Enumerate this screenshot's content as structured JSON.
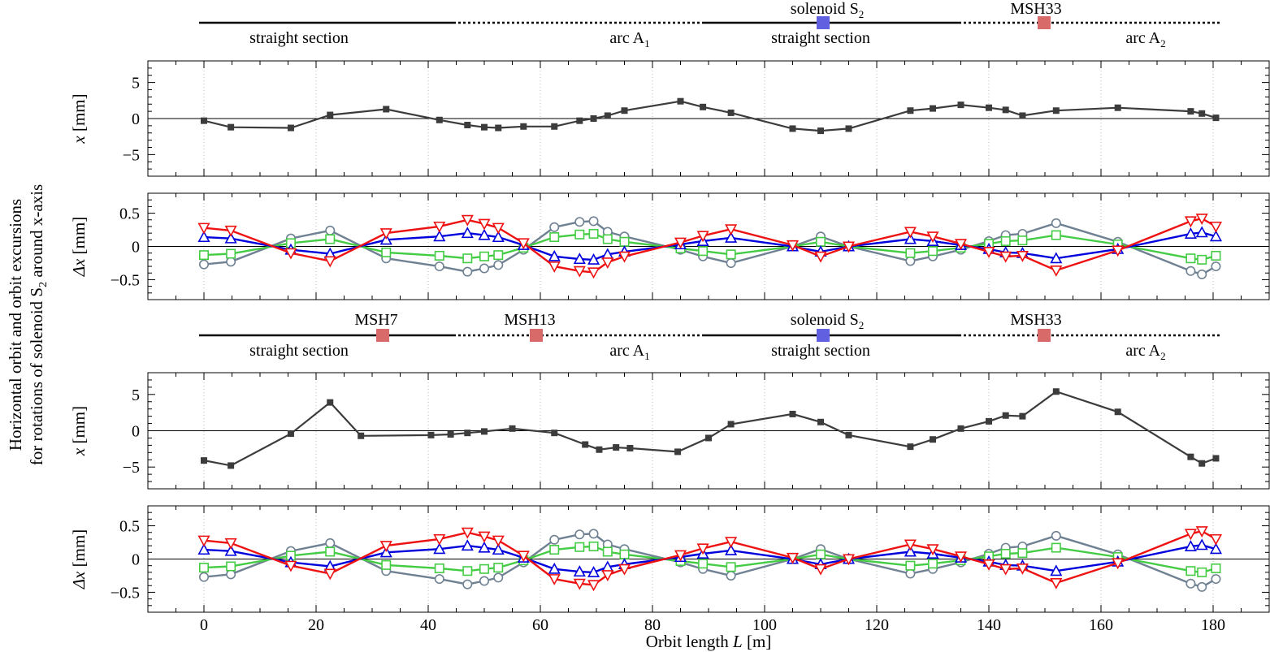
{
  "figure": {
    "ylabel_line1": "Horizontal orbit and orbit excursions",
    "ylabel_line2_prefix": "for rotations of solenoid S",
    "ylabel_line2_sub": "2",
    "ylabel_line2_suffix": " around x-axis",
    "xlabel_prefix": "Orbit length ",
    "xlabel_var": "L",
    "xlabel_suffix": " [m]"
  },
  "beamlines": [
    {
      "labels": [
        {
          "text": "solenoid S",
          "sub": "2",
          "color": "#6060e0"
        },
        {
          "text": "MSH33",
          "sub": "",
          "color": "#d96a6a"
        }
      ],
      "sections": [
        {
          "name": "straight section",
          "sub": "",
          "style": "solid"
        },
        {
          "name": "arc A",
          "sub": "1",
          "style": "dotted"
        },
        {
          "name": "straight section",
          "sub": "",
          "style": "solid"
        },
        {
          "name": "arc A",
          "sub": "2",
          "style": "dotted"
        }
      ]
    },
    {
      "labels": [
        {
          "text": "MSH7",
          "sub": "",
          "color": "#d96a6a"
        },
        {
          "text": "MSH13",
          "sub": "",
          "color": "#d96a6a"
        },
        {
          "text": "solenoid S",
          "sub": "2",
          "color": "#6060e0"
        },
        {
          "text": "MSH33",
          "sub": "",
          "color": "#d96a6a"
        }
      ],
      "sections": [
        {
          "name": "straight section",
          "sub": "",
          "style": "solid"
        },
        {
          "name": "arc A",
          "sub": "1",
          "style": "dotted"
        },
        {
          "name": "straight section",
          "sub": "",
          "style": "solid"
        },
        {
          "name": "arc A",
          "sub": "2",
          "style": "dotted"
        }
      ]
    }
  ],
  "chart_data": [
    {
      "type": "line",
      "panel": "orbit-top",
      "ylabel_var": "x",
      "ylabel_unit": " [mm]",
      "xlim": [
        -10,
        190
      ],
      "ylim": [
        -8,
        8
      ],
      "xticks": [
        0,
        20,
        40,
        60,
        80,
        100,
        120,
        140,
        160,
        180
      ],
      "yticks": [
        -5,
        0,
        5
      ],
      "ytick_labels": [
        "−5",
        "0",
        "5"
      ],
      "series": [
        {
          "name": "orbit",
          "color": "#3c3c3c",
          "marker": "filled-square",
          "x": [
            0,
            4.8,
            15.5,
            22.5,
            32.5,
            42,
            47,
            50,
            52.5,
            57,
            62.5,
            67,
            69.5,
            72,
            75,
            85,
            89,
            94,
            105,
            110,
            115,
            126,
            130,
            135,
            140,
            143,
            146,
            152,
            163,
            176,
            178,
            180.5
          ],
          "y": [
            -0.3,
            -1.2,
            -1.3,
            0.5,
            1.3,
            -0.2,
            -0.9,
            -1.2,
            -1.3,
            -1.1,
            -1.1,
            -0.3,
            0.0,
            0.4,
            1.1,
            2.4,
            1.6,
            0.8,
            -1.4,
            -1.7,
            -1.4,
            1.1,
            1.4,
            1.9,
            1.5,
            1.2,
            0.4,
            1.1,
            1.5,
            1.0,
            0.7,
            0.1
          ]
        }
      ]
    },
    {
      "type": "line",
      "panel": "excursion-top",
      "ylabel_var": "Δx",
      "ylabel_unit": " [mm]",
      "xlim": [
        -10,
        190
      ],
      "ylim": [
        -0.8,
        0.8
      ],
      "xticks": [
        0,
        20,
        40,
        60,
        80,
        100,
        120,
        140,
        160,
        180
      ],
      "yticks": [
        -0.5,
        0,
        0.5
      ],
      "ytick_labels": [
        "−0.5",
        "0",
        "0.5"
      ],
      "x": [
        0,
        4.8,
        15.5,
        22.5,
        32.5,
        42,
        47,
        50,
        52.5,
        57,
        62.5,
        67,
        69.5,
        72,
        75,
        85,
        89,
        94,
        105,
        110,
        115,
        126,
        130,
        135,
        140,
        143,
        146,
        152,
        163,
        176,
        178,
        180.5
      ],
      "series": [
        {
          "name": "slate-circles",
          "color": "#6f8192",
          "marker": "circle",
          "y": [
            -0.27,
            -0.23,
            0.12,
            0.24,
            -0.18,
            -0.3,
            -0.38,
            -0.33,
            -0.28,
            -0.05,
            0.29,
            0.37,
            0.38,
            0.22,
            0.15,
            -0.05,
            -0.15,
            -0.25,
            0.0,
            0.15,
            0.0,
            -0.22,
            -0.15,
            -0.05,
            0.08,
            0.17,
            0.19,
            0.35,
            0.07,
            -0.37,
            -0.42,
            -0.3
          ]
        },
        {
          "name": "green-squares",
          "color": "#44cc44",
          "marker": "square",
          "y": [
            -0.13,
            -0.11,
            0.05,
            0.11,
            -0.09,
            -0.14,
            -0.18,
            -0.15,
            -0.13,
            -0.02,
            0.14,
            0.18,
            0.19,
            0.11,
            0.07,
            -0.03,
            -0.07,
            -0.12,
            0.0,
            0.07,
            0.0,
            -0.1,
            -0.07,
            -0.02,
            0.04,
            0.08,
            0.09,
            0.17,
            0.03,
            -0.18,
            -0.2,
            -0.14
          ]
        },
        {
          "name": "blue-triangles",
          "color": "#0000dd",
          "marker": "triangle-up",
          "y": [
            0.14,
            0.12,
            -0.05,
            -0.11,
            0.1,
            0.15,
            0.2,
            0.17,
            0.14,
            0.02,
            -0.15,
            -0.19,
            -0.2,
            -0.12,
            -0.08,
            0.03,
            0.08,
            0.13,
            0.0,
            -0.08,
            0.0,
            0.11,
            0.08,
            0.02,
            -0.04,
            -0.09,
            -0.1,
            -0.18,
            -0.04,
            0.19,
            0.21,
            0.15
          ]
        },
        {
          "name": "red-triangles",
          "color": "#ee1111",
          "marker": "triangle-down",
          "y": [
            0.28,
            0.24,
            -0.1,
            -0.22,
            0.2,
            0.3,
            0.4,
            0.34,
            0.28,
            0.05,
            -0.3,
            -0.37,
            -0.39,
            -0.24,
            -0.15,
            0.06,
            0.16,
            0.26,
            0.02,
            -0.15,
            0.0,
            0.22,
            0.15,
            0.04,
            -0.08,
            -0.15,
            -0.14,
            -0.36,
            -0.06,
            0.38,
            0.42,
            0.3
          ]
        }
      ]
    },
    {
      "type": "line",
      "panel": "orbit-bottom",
      "ylabel_var": "x",
      "ylabel_unit": " [mm]",
      "xlim": [
        -10,
        190
      ],
      "ylim": [
        -8,
        8
      ],
      "xticks": [
        0,
        20,
        40,
        60,
        80,
        100,
        120,
        140,
        160,
        180
      ],
      "yticks": [
        -5,
        0,
        5
      ],
      "ytick_labels": [
        "−5",
        "0",
        "5"
      ],
      "series": [
        {
          "name": "orbit",
          "color": "#3c3c3c",
          "marker": "filled-square",
          "x": [
            0,
            4.8,
            15.5,
            22.5,
            28,
            40.5,
            44,
            47,
            50,
            55,
            62.5,
            68,
            70.5,
            73.5,
            76,
            84.5,
            90,
            94,
            105,
            110,
            115,
            126,
            130,
            135,
            140,
            143,
            146,
            152,
            163,
            176,
            178,
            180.5
          ],
          "y": [
            -4.1,
            -4.8,
            -0.4,
            3.9,
            -0.7,
            -0.6,
            -0.5,
            -0.3,
            -0.1,
            0.3,
            -0.3,
            -1.9,
            -2.6,
            -2.3,
            -2.4,
            -2.9,
            -1.0,
            0.9,
            2.3,
            1.2,
            -0.6,
            -2.2,
            -1.2,
            0.3,
            1.3,
            2.1,
            2.0,
            5.4,
            2.6,
            -3.6,
            -4.5,
            -3.8
          ]
        }
      ]
    },
    {
      "type": "line",
      "panel": "excursion-bottom",
      "ylabel_var": "Δx",
      "ylabel_unit": " [mm]",
      "xlim": [
        -10,
        190
      ],
      "ylim": [
        -0.8,
        0.8
      ],
      "xticks": [
        0,
        20,
        40,
        60,
        80,
        100,
        120,
        140,
        160,
        180
      ],
      "xtick_labels": [
        "0",
        "20",
        "40",
        "60",
        "80",
        "100",
        "120",
        "140",
        "160",
        "180"
      ],
      "yticks": [
        -0.5,
        0,
        0.5
      ],
      "ytick_labels": [
        "−0.5",
        "0",
        "0.5"
      ],
      "x": [
        0,
        4.8,
        15.5,
        22.5,
        32.5,
        42,
        47,
        50,
        52.5,
        57,
        62.5,
        67,
        69.5,
        72,
        75,
        85,
        89,
        94,
        105,
        110,
        115,
        126,
        130,
        135,
        140,
        143,
        146,
        152,
        163,
        176,
        178,
        180.5
      ],
      "series": [
        {
          "name": "slate-circles",
          "color": "#6f8192",
          "marker": "circle",
          "y": [
            -0.27,
            -0.23,
            0.12,
            0.24,
            -0.18,
            -0.3,
            -0.38,
            -0.33,
            -0.28,
            -0.05,
            0.29,
            0.37,
            0.38,
            0.22,
            0.15,
            -0.05,
            -0.15,
            -0.25,
            0.0,
            0.15,
            0.0,
            -0.22,
            -0.15,
            -0.05,
            0.08,
            0.17,
            0.19,
            0.35,
            0.07,
            -0.37,
            -0.42,
            -0.3
          ]
        },
        {
          "name": "green-squares",
          "color": "#44cc44",
          "marker": "square",
          "y": [
            -0.13,
            -0.11,
            0.05,
            0.11,
            -0.09,
            -0.14,
            -0.18,
            -0.15,
            -0.13,
            -0.02,
            0.14,
            0.18,
            0.19,
            0.11,
            0.07,
            -0.03,
            -0.07,
            -0.12,
            0.0,
            0.07,
            0.0,
            -0.1,
            -0.07,
            -0.02,
            0.04,
            0.08,
            0.09,
            0.17,
            0.03,
            -0.18,
            -0.2,
            -0.14
          ]
        },
        {
          "name": "blue-triangles",
          "color": "#0000dd",
          "marker": "triangle-up",
          "y": [
            0.14,
            0.12,
            -0.05,
            -0.11,
            0.1,
            0.15,
            0.2,
            0.17,
            0.14,
            0.02,
            -0.15,
            -0.19,
            -0.2,
            -0.12,
            -0.08,
            0.03,
            0.08,
            0.13,
            0.0,
            -0.08,
            0.0,
            0.11,
            0.08,
            0.02,
            -0.04,
            -0.09,
            -0.1,
            -0.18,
            -0.04,
            0.19,
            0.21,
            0.15
          ]
        },
        {
          "name": "red-triangles",
          "color": "#ee1111",
          "marker": "triangle-down",
          "y": [
            0.28,
            0.24,
            -0.1,
            -0.22,
            0.2,
            0.3,
            0.4,
            0.34,
            0.28,
            0.05,
            -0.3,
            -0.37,
            -0.39,
            -0.24,
            -0.15,
            0.06,
            0.16,
            0.26,
            0.02,
            -0.15,
            0.0,
            0.22,
            0.15,
            0.04,
            -0.08,
            -0.15,
            -0.14,
            -0.36,
            -0.06,
            0.38,
            0.42,
            0.3
          ]
        }
      ]
    }
  ]
}
